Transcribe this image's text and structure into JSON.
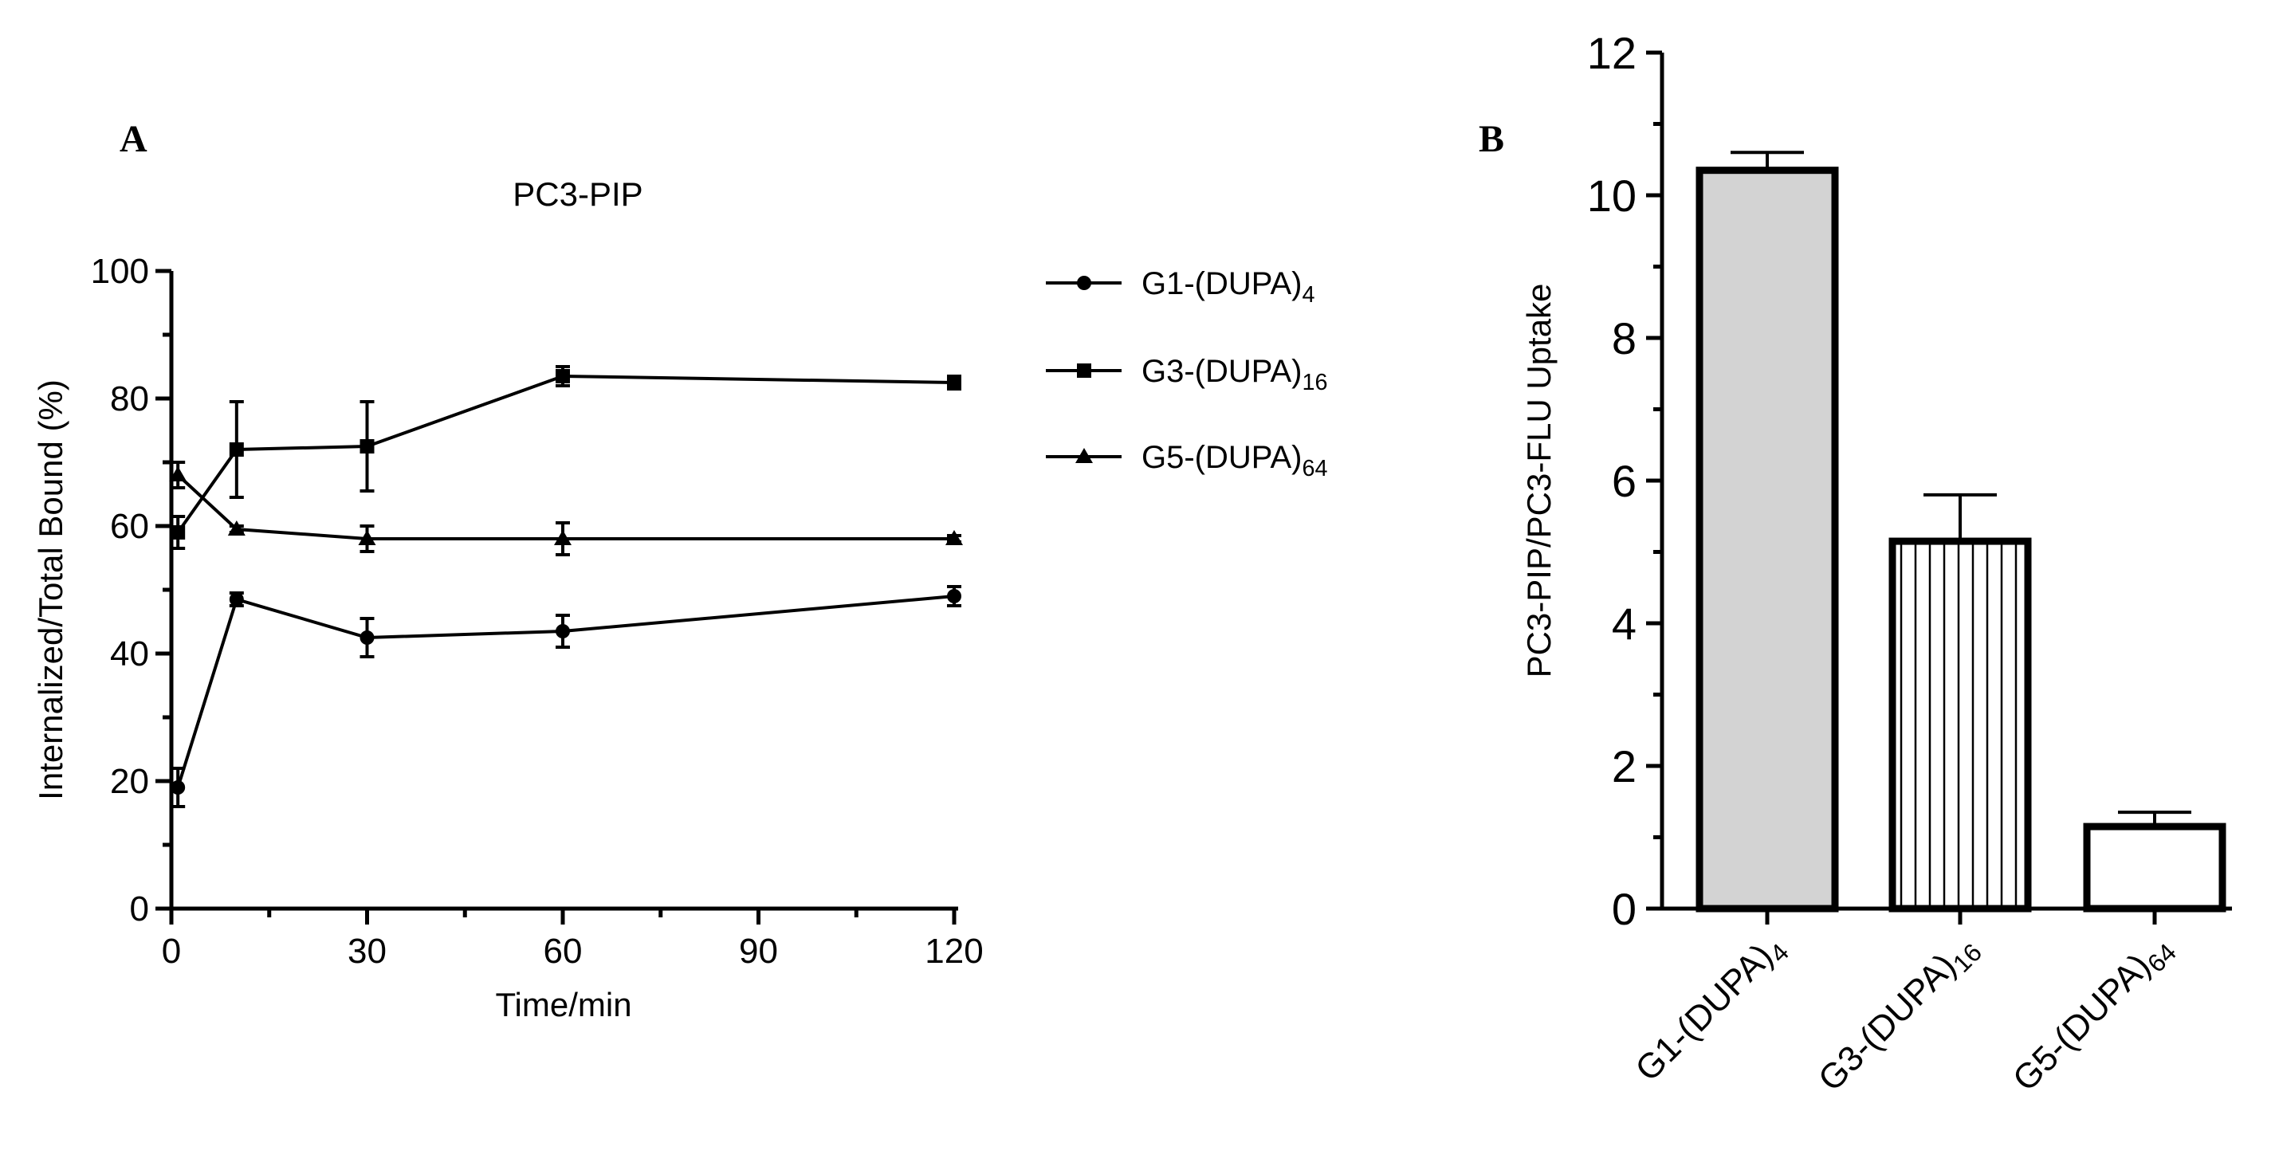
{
  "chart_data": [
    {
      "type": "line",
      "panel": "A",
      "title": "PC3-PIP",
      "xlabel": "Time/min",
      "ylabel": "Internalized/Total Bound (%)",
      "xlim": [
        0,
        120
      ],
      "ylim": [
        0,
        100
      ],
      "xticks": [
        0,
        30,
        60,
        90,
        120
      ],
      "yticks": [
        0,
        20,
        40,
        60,
        80,
        100
      ],
      "legend_position": "right",
      "series": [
        {
          "name": "G1-(DUPA)4",
          "name_main": "G1-(DUPA)",
          "name_sub": "4",
          "marker": "circle",
          "x": [
            1,
            10,
            30,
            60,
            120
          ],
          "y": [
            19,
            48.5,
            42.5,
            43.5,
            49
          ],
          "err": [
            3,
            1,
            3,
            2.5,
            1.5
          ]
        },
        {
          "name": "G3-(DUPA)16",
          "name_main": "G3-(DUPA)",
          "name_sub": "16",
          "marker": "square",
          "x": [
            1,
            10,
            30,
            60,
            120
          ],
          "y": [
            59,
            72,
            72.5,
            83.5,
            82.5
          ],
          "err": [
            2.5,
            7.5,
            7,
            1.5,
            1
          ]
        },
        {
          "name": "G5-(DUPA)64",
          "name_main": "G5-(DUPA)",
          "name_sub": "64",
          "marker": "triangle",
          "x": [
            1,
            10,
            30,
            60,
            120
          ],
          "y": [
            68,
            59.5,
            58,
            58,
            58
          ],
          "err": [
            2,
            0.5,
            2,
            2.5,
            0.5
          ]
        }
      ]
    },
    {
      "type": "bar",
      "panel": "B",
      "ylabel": "PC3-PIP/PC3-FLU Uptake",
      "ylim": [
        0,
        12
      ],
      "yticks": [
        0,
        2,
        4,
        6,
        8,
        10,
        12
      ],
      "categories": [
        "G1-(DUPA)4",
        "G3-(DUPA)16",
        "G5-(DUPA)64"
      ],
      "categories_main": [
        "G1-(DUPA)",
        "G3-(DUPA)",
        "G5-(DUPA)"
      ],
      "categories_sub": [
        "4",
        "16",
        "64"
      ],
      "values": [
        10.35,
        5.15,
        1.15
      ],
      "err": [
        0.25,
        0.65,
        0.2
      ],
      "fills": [
        "#d3d3d3",
        "vertical-stripes",
        "#ffffff"
      ]
    }
  ]
}
